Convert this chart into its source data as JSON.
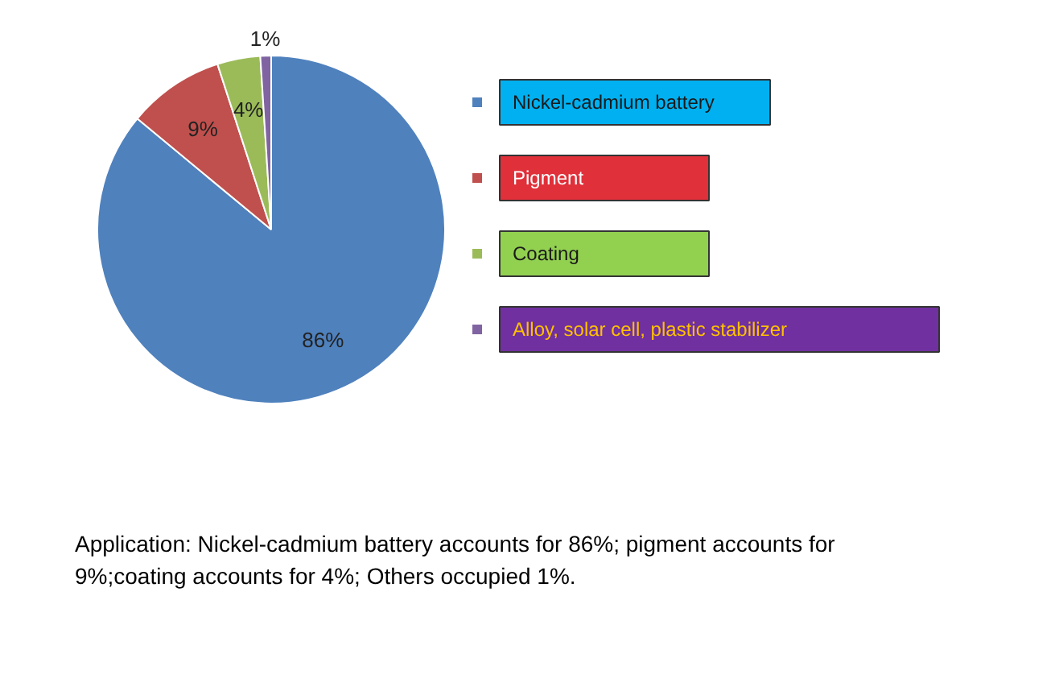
{
  "chart_data": {
    "type": "pie",
    "categories": [
      "Nickel-cadmium battery",
      "Pigment",
      "Coating",
      "Alloy, solar cell, plastic stabilizer"
    ],
    "values": [
      86,
      9,
      4,
      1
    ],
    "colors": [
      "#4f81bd",
      "#c0504d",
      "#9bbb59",
      "#8064a2"
    ],
    "value_labels": [
      "86%",
      "9%",
      "4%",
      "1%"
    ],
    "legend": "right",
    "annotations": [
      "Application: Nickel-cadmium battery accounts for 86%; pigment accounts for 9%;coating accounts for 4%; Others occupied 1%."
    ]
  }
}
